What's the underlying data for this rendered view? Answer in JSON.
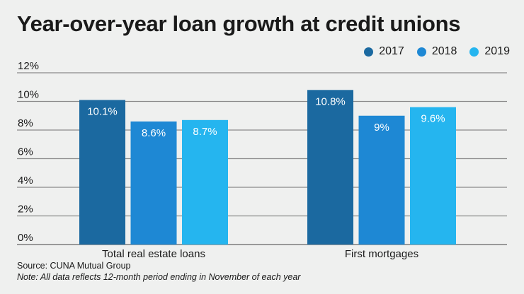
{
  "chart_data": {
    "type": "bar",
    "title": "Year-over-year loan growth at credit unions",
    "categories": [
      "Total real estate loans",
      "First mortgages"
    ],
    "series": [
      {
        "name": "2017",
        "values": [
          10.1,
          10.8
        ],
        "labels": [
          "10.1%",
          "10.8%"
        ],
        "color": "#1b69a0"
      },
      {
        "name": "2018",
        "values": [
          8.6,
          9.0
        ],
        "labels": [
          "8.6%",
          "9%"
        ],
        "color": "#1e88d4"
      },
      {
        "name": "2019",
        "values": [
          8.7,
          9.6
        ],
        "labels": [
          "8.7%",
          "9.6%"
        ],
        "color": "#25b5ef"
      }
    ],
    "ylim": [
      0,
      12
    ],
    "yticks": [
      "0%",
      "2%",
      "4%",
      "6%",
      "8%",
      "10%",
      "12%"
    ],
    "grid": true,
    "legend": "top-right",
    "xlabel": "",
    "ylabel": ""
  },
  "source": "Source: CUNA Mutual Group",
  "note": "Note: All data reflects 12-month period ending in November of each year"
}
